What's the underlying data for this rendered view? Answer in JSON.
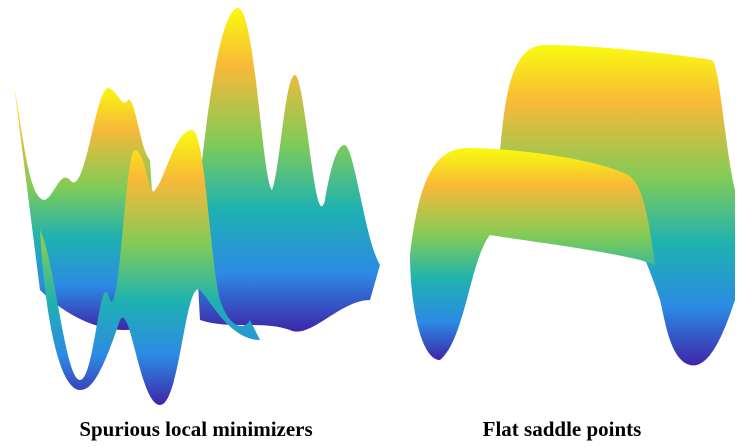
{
  "captions": [
    "Spurious local minimizers",
    "Flat saddle points"
  ]
}
